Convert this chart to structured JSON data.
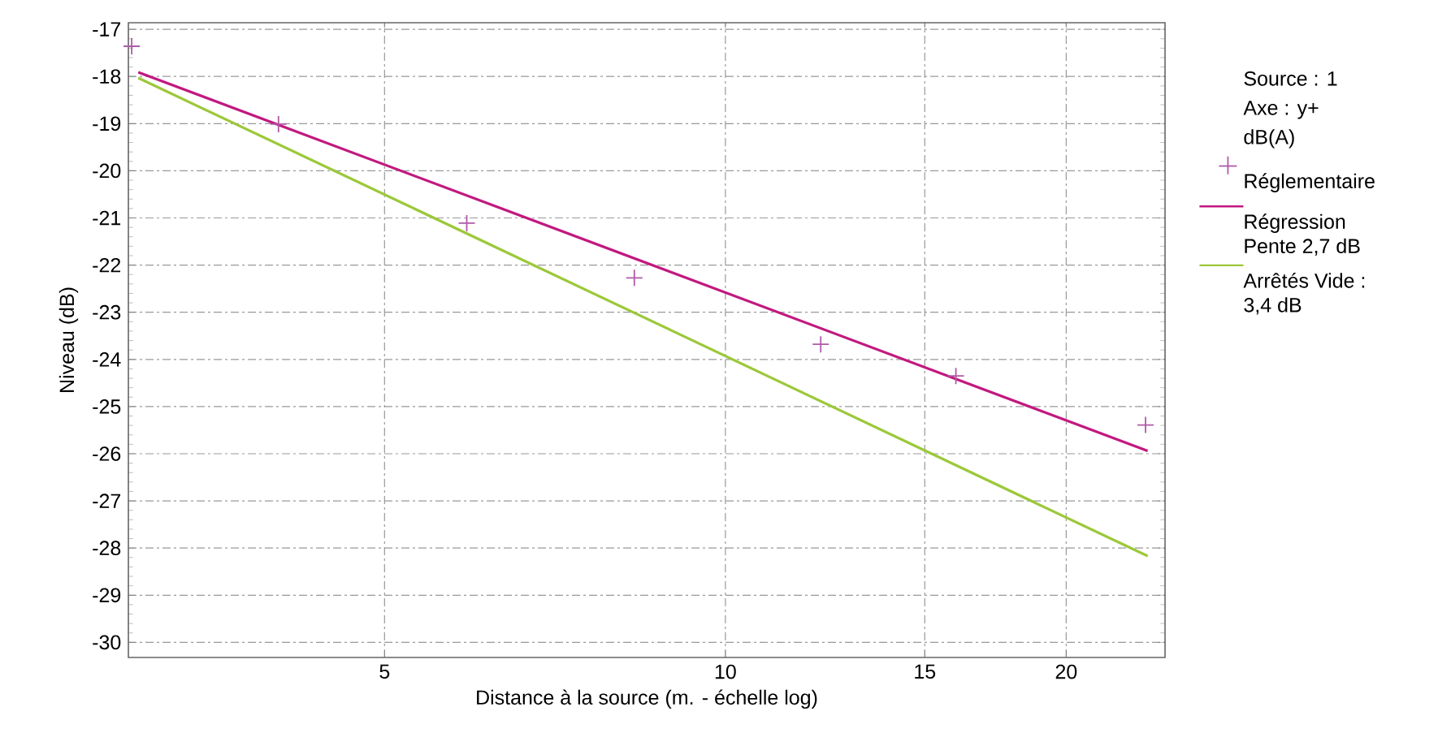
{
  "chart_data": {
    "type": "scatter",
    "xlabel": "Distance à la source (m. - échelle log)",
    "ylabel": "Niveau (dB)",
    "legend_title": "Source : 1",
    "annotations": [
      "Axe : y+",
      "dB(A)"
    ],
    "log": "x",
    "xlim": [
      2.97,
      24.45
    ],
    "ylim": [
      -30.32,
      -16.86
    ],
    "xticks": [
      5,
      10,
      15,
      20
    ],
    "yticks": [
      -17,
      -18,
      -19,
      -20,
      -21,
      -22,
      -23,
      -24,
      -25,
      -26,
      -27,
      -28,
      -29,
      -30
    ],
    "grid": true,
    "legend": "right",
    "series": [
      {
        "name": "Réglementaire",
        "marker": "cross",
        "color": "#b05aa8",
        "x": [
          2.99,
          4.03,
          5.91,
          8.31,
          12.14,
          15.98,
          23.5
        ],
        "values": [
          -17.36,
          -19.01,
          -21.11,
          -22.27,
          -23.68,
          -24.35,
          -25.39
        ]
      },
      {
        "name": "Régression Pente 2,7 dB",
        "type": "line",
        "color": "#c2187f",
        "x": [
          3.03,
          23.6
        ],
        "values": [
          -17.91,
          -25.94
        ]
      },
      {
        "name": "Arrêtés Vide : 3,4 dB",
        "type": "line",
        "color": "#9cc83a",
        "x": [
          3.03,
          23.6
        ],
        "values": [
          -18.03,
          -28.17
        ]
      }
    ]
  }
}
